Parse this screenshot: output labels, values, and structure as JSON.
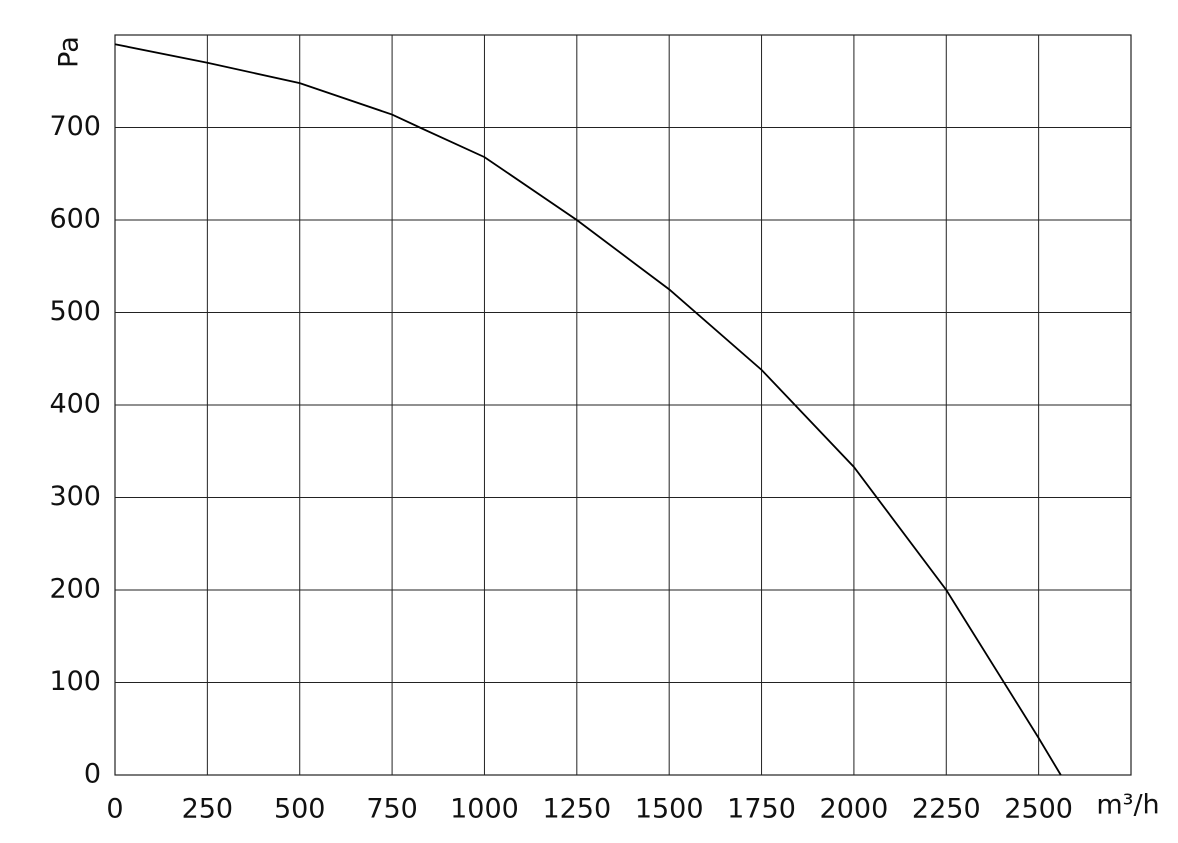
{
  "chart_data": {
    "type": "line",
    "x_label": "m³/h",
    "y_label": "Pa",
    "x": [
      0,
      250,
      500,
      750,
      825,
      1000,
      1250,
      1500,
      1750,
      2000,
      2250,
      2500,
      2560
    ],
    "series": [
      {
        "name": "Pa",
        "color": "#000000",
        "values": [
          790,
          770,
          748,
          714,
          700,
          668,
          600,
          525,
          438,
          333,
          200,
          40,
          0
        ]
      }
    ],
    "xlim": [
      0,
      2750
    ],
    "xticks": [
      0,
      250,
      500,
      750,
      1000,
      1250,
      1500,
      1750,
      2000,
      2250,
      2500
    ],
    "ylim": [
      0,
      800
    ],
    "yticks": [
      0,
      100,
      200,
      300,
      400,
      500,
      600,
      700
    ],
    "grid": true
  }
}
